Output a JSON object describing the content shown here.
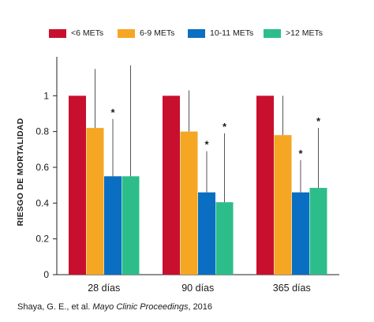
{
  "chart_data": {
    "type": "bar",
    "title": "",
    "xlabel": "",
    "ylabel": "RIESGO DE MORTALIDAD",
    "ylim": [
      0,
      1.2
    ],
    "yticks": [
      "0",
      "0.2",
      "0.4",
      "0.6",
      "0.8",
      "1"
    ],
    "categories": [
      "28 días",
      "90 días",
      "365 días"
    ],
    "legend_position": "top",
    "grid": false,
    "series": [
      {
        "name": "<6 METs",
        "color": "#c8102e",
        "values": [
          1.0,
          1.0,
          1.0
        ],
        "err_upper": [
          null,
          null,
          null
        ],
        "significant": [
          false,
          false,
          false
        ]
      },
      {
        "name": "6-9 METs",
        "color": "#f5a623",
        "values": [
          0.82,
          0.8,
          0.78
        ],
        "err_upper": [
          1.15,
          1.03,
          1.0
        ],
        "significant": [
          false,
          false,
          false
        ]
      },
      {
        "name": "10-11 METs",
        "color": "#0a6fc2",
        "values": [
          0.55,
          0.46,
          0.46
        ],
        "err_upper": [
          0.87,
          0.69,
          0.64
        ],
        "significant": [
          true,
          true,
          true
        ]
      },
      {
        "name": ">12 METs",
        "color": "#2dbd8b",
        "values": [
          0.55,
          0.405,
          0.485
        ],
        "err_upper": [
          1.17,
          0.79,
          0.82
        ],
        "significant": [
          false,
          true,
          true
        ]
      }
    ],
    "significance_marker": "*"
  },
  "source": {
    "authors": "Shaya, G. E., et al. ",
    "journal": "Mayo Clinic Proceedings",
    "year": ", 2016"
  }
}
